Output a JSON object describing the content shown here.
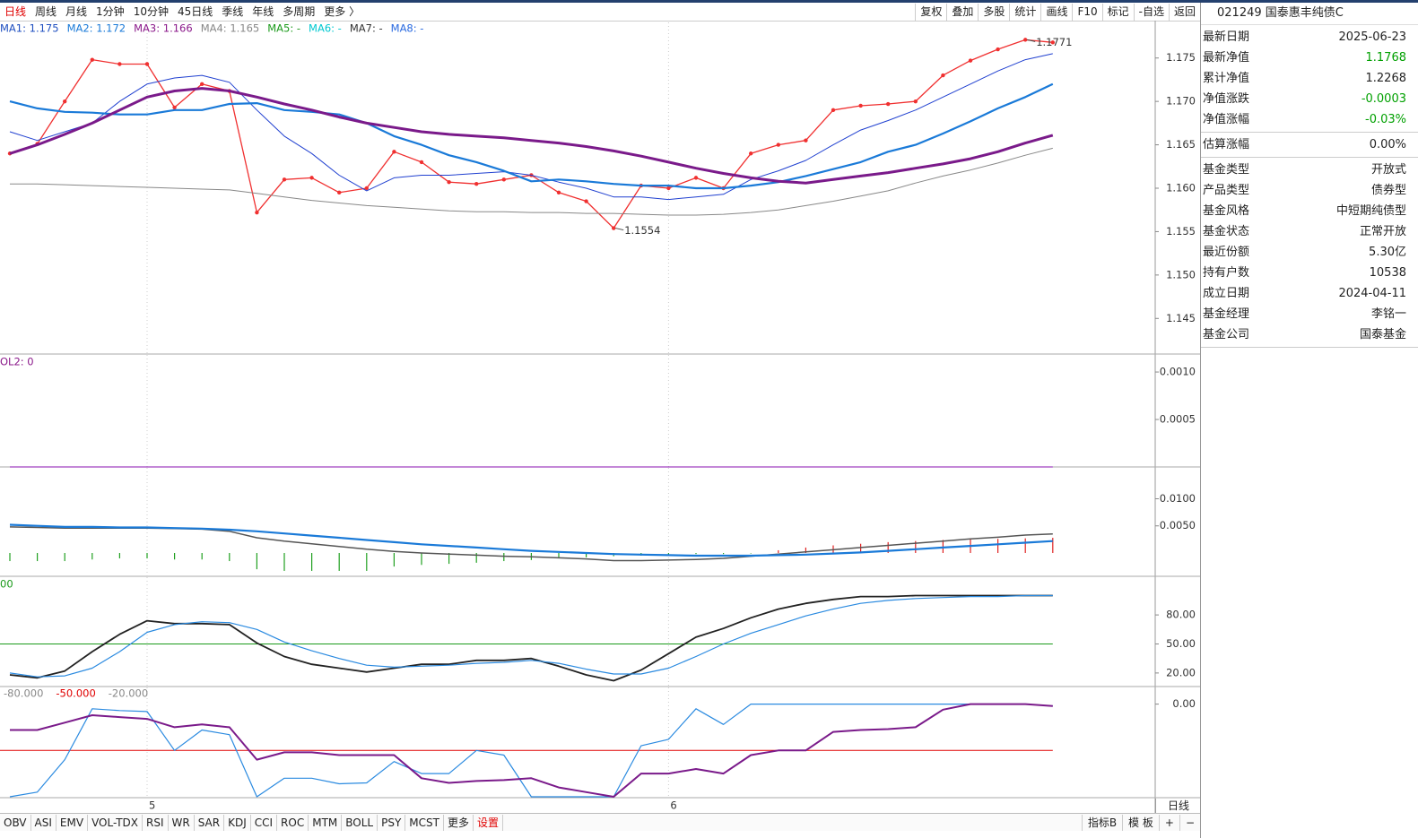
{
  "toolbar": {
    "tabs": [
      {
        "label": "日线",
        "active": true
      },
      {
        "label": "周线"
      },
      {
        "label": "月线"
      },
      {
        "label": "1分钟"
      },
      {
        "label": "10分钟"
      },
      {
        "label": "45日线"
      },
      {
        "label": "季线"
      },
      {
        "label": "年线"
      },
      {
        "label": "多周期"
      },
      {
        "label": "更多 〉"
      }
    ],
    "tools": [
      "复权",
      "叠加",
      "多股",
      "统计",
      "画线",
      "F10",
      "标记",
      "-自选",
      "返回"
    ]
  },
  "chart_data": [
    {
      "type": "line",
      "categories": [
        null,
        null,
        null,
        null,
        null,
        "5",
        null,
        null,
        null,
        null,
        null,
        null,
        null,
        null,
        null,
        null,
        null,
        null,
        null,
        null,
        null,
        null,
        null,
        null,
        "6",
        null,
        null,
        null,
        null,
        null,
        null,
        null,
        null,
        null,
        null,
        null,
        null,
        null,
        null
      ],
      "legend": [
        {
          "text": "MA1: 1.175",
          "color": "#1f4fc0"
        },
        {
          "text": "MA2: 1.172",
          "color": "#1a7ad8"
        },
        {
          "text": "MA3: 1.166",
          "color": "#8b1a8b"
        },
        {
          "text": "MA4: 1.165",
          "color": "#888888"
        },
        {
          "text": "MA5: -",
          "color": "#1a9a1a"
        },
        {
          "text": "MA6: -",
          "color": "#00c8d0"
        },
        {
          "text": "MA7: -",
          "color": "#333333"
        },
        {
          "text": "MA8: -",
          "color": "#2a6ae0"
        }
      ],
      "ylim": [
        1.1409,
        1.1791
      ],
      "yticks": [
        1.175,
        {
          "value": 1.17,
          "label": "1.170"
        },
        1.165,
        {
          "value": 1.16,
          "label": "1.160"
        },
        1.155,
        {
          "value": 1.15,
          "label": "1.150"
        },
        1.145
      ],
      "series": [
        {
          "color": "#f03030",
          "markers": true,
          "values": [
            1.164,
            1.1651,
            1.17,
            1.1748,
            1.1743,
            1.1743,
            1.1693,
            1.172,
            1.1712,
            1.1572,
            1.161,
            1.1612,
            1.1595,
            1.16,
            1.1642,
            1.163,
            1.1607,
            1.1605,
            1.161,
            1.1615,
            1.1595,
            1.1585,
            1.1554,
            1.1603,
            1.16,
            1.1612,
            1.16,
            1.164,
            1.165,
            1.1655,
            1.169,
            1.1695,
            1.1697,
            1.17,
            1.173,
            1.1747,
            1.176,
            1.1771,
            1.1768
          ]
        },
        {
          "color": "#2040d0",
          "values": [
            1.1665,
            1.1655,
            1.1665,
            1.1675,
            1.17,
            1.172,
            1.1727,
            1.173,
            1.1722,
            1.169,
            1.166,
            1.164,
            1.1615,
            1.1597,
            1.1612,
            1.1615,
            1.1615,
            1.1617,
            1.1619,
            1.1615,
            1.1607,
            1.16,
            1.159,
            1.159,
            1.1587,
            1.159,
            1.1593,
            1.161,
            1.162,
            1.1632,
            1.165,
            1.1667,
            1.1678,
            1.169,
            1.1705,
            1.172,
            1.1735,
            1.1748,
            1.1755
          ]
        },
        {
          "color": "#1a7ad8",
          "values": [
            1.17,
            1.1692,
            1.1688,
            1.1687,
            1.1685,
            1.1685,
            1.169,
            1.169,
            1.1697,
            1.1698,
            1.169,
            1.1688,
            1.1685,
            1.1675,
            1.166,
            1.165,
            1.1638,
            1.163,
            1.162,
            1.1608,
            1.161,
            1.1608,
            1.1605,
            1.1603,
            1.1603,
            1.16,
            1.16,
            1.1603,
            1.1607,
            1.1614,
            1.1622,
            1.163,
            1.1642,
            1.165,
            1.1663,
            1.1677,
            1.1692,
            1.1705,
            1.172
          ]
        },
        {
          "color": "#7a1a8a",
          "values": [
            1.164,
            1.165,
            1.1662,
            1.1675,
            1.169,
            1.1705,
            1.1712,
            1.1715,
            1.1712,
            1.1705,
            1.1697,
            1.169,
            1.1682,
            1.1675,
            1.167,
            1.1665,
            1.1662,
            1.166,
            1.1658,
            1.1655,
            1.1652,
            1.1648,
            1.1643,
            1.1637,
            1.163,
            1.1623,
            1.1617,
            1.1612,
            1.1608,
            1.1606,
            1.161,
            1.1614,
            1.1618,
            1.1623,
            1.1628,
            1.1634,
            1.1642,
            1.1652,
            1.1661
          ]
        },
        {
          "color": "#888888",
          "values": [
            1.1605,
            1.1605,
            1.1604,
            1.1603,
            1.1602,
            1.1601,
            1.16,
            1.1599,
            1.1598,
            1.1594,
            1.159,
            1.1586,
            1.1583,
            1.158,
            1.1578,
            1.1576,
            1.1574,
            1.1573,
            1.1573,
            1.1572,
            1.1572,
            1.1571,
            1.1571,
            1.157,
            1.1569,
            1.1569,
            1.157,
            1.1572,
            1.1575,
            1.158,
            1.1585,
            1.1591,
            1.1597,
            1.1606,
            1.1614,
            1.1621,
            1.1629,
            1.1638,
            1.1646
          ]
        }
      ],
      "annotations": [
        {
          "value": 1.1771
        },
        {
          "value": 1.1554
        }
      ]
    },
    {
      "type": "line",
      "header": "OL2: 0",
      "header_color": "#8b1a8b",
      "ylim": [
        0,
        0.00118
      ],
      "yticks": [
        {
          "value": 0.001,
          "label": "0.0010"
        },
        0.0005
      ],
      "series": [
        {
          "color": "#a040c0",
          "values": [
            0,
            0,
            0,
            0,
            0,
            0,
            0,
            0,
            0,
            0,
            0,
            0,
            0,
            0,
            0,
            0,
            0,
            0,
            0,
            0,
            0,
            0,
            0,
            0,
            0,
            0,
            0,
            0,
            0,
            0,
            0,
            0,
            0,
            0,
            0,
            0,
            0,
            0,
            0
          ]
        }
      ]
    },
    {
      "type": "line",
      "ylim": [
        -0.0043,
        0.0157
      ],
      "yticks": [
        {
          "value": 0.01,
          "label": "0.0100"
        },
        {
          "value": 0.005,
          "label": "0.0050"
        }
      ],
      "series": [
        {
          "color": "#555555",
          "values": [
            0.0048,
            0.0047,
            0.0046,
            0.0046,
            0.0046,
            0.0046,
            0.0045,
            0.0044,
            0.004,
            0.0028,
            0.0022,
            0.0017,
            0.0012,
            0.0007,
            0.0003,
            0,
            -0.0002,
            -0.0004,
            -0.0006,
            -0.0007,
            -0.0009,
            -0.0011,
            -0.0014,
            -0.0014,
            -0.0013,
            -0.0012,
            -0.001,
            -0.0006,
            -0.0002,
            0.0002,
            0.0006,
            0.001,
            0.0014,
            0.0018,
            0.0022,
            0.0026,
            0.0029,
            0.0033,
            0.0035
          ]
        },
        {
          "color": "#1a7ad8",
          "values": [
            0.0052,
            0.005,
            0.0048,
            0.0048,
            0.0047,
            0.0047,
            0.0046,
            0.0045,
            0.0043,
            0.004,
            0.0036,
            0.0032,
            0.0028,
            0.0024,
            0.002,
            0.0016,
            0.0013,
            0.001,
            0.0007,
            0.0004,
            0.0002,
            0,
            -0.0002,
            -0.0003,
            -0.0004,
            -0.0005,
            -0.0005,
            -0.0005,
            -0.0004,
            -0.0003,
            -0.0001,
            0.0001,
            0.0004,
            0.0007,
            0.001,
            0.0013,
            0.0016,
            0.0019,
            0.0022
          ]
        }
      ],
      "bars": {
        "up_color": "#e02020",
        "down_color": "#20a020",
        "values": [
          -0.0015,
          -0.0015,
          -0.0015,
          -0.0012,
          -0.001,
          -0.001,
          -0.0012,
          -0.0012,
          -0.0015,
          -0.003,
          -0.0033,
          -0.0033,
          -0.0033,
          -0.0033,
          -0.0025,
          -0.0022,
          -0.002,
          -0.0018,
          -0.0015,
          -0.0013,
          -0.001,
          -0.0008,
          -0.0006,
          -0.0005,
          -0.0003,
          -0.0002,
          -0.0002,
          -0.0001,
          0.0005,
          0.001,
          0.0014,
          0.0017,
          0.002,
          0.0022,
          0.0024,
          0.0025,
          0.0026,
          0.0027,
          0.0028
        ]
      }
    },
    {
      "type": "line",
      "header": "00",
      "header_color": "#1a9a1a",
      "ylim": [
        6,
        119
      ],
      "yticks": [
        {
          "value": 80,
          "label": "80.00"
        },
        {
          "value": 50,
          "label": "50.00"
        },
        {
          "value": 20,
          "label": "20.00"
        }
      ],
      "levels": [
        {
          "value": 50,
          "color": "#1a9a1a",
          "line": true
        }
      ],
      "series": [
        {
          "color": "#222222",
          "values": [
            18,
            15,
            22,
            42,
            60,
            74,
            71,
            71,
            70,
            51,
            37,
            29,
            25,
            21,
            25,
            29,
            29,
            33,
            33,
            35,
            27,
            18,
            12,
            23,
            40,
            57,
            66,
            77,
            86,
            92,
            96,
            99,
            99,
            100,
            100,
            100,
            100,
            100,
            100
          ]
        },
        {
          "color": "#2a8ae0",
          "values": [
            20,
            16,
            17,
            25,
            42,
            62,
            70,
            73,
            72,
            65,
            52,
            43,
            35,
            28,
            26,
            27,
            28,
            30,
            31,
            33,
            30,
            24,
            19,
            19,
            25,
            37,
            50,
            61,
            70,
            79,
            86,
            92,
            95,
            97,
            98,
            99,
            99,
            100,
            100
          ]
        }
      ]
    },
    {
      "type": "line",
      "ylim": [
        -101,
        18
      ],
      "yticks": [
        {
          "value": 0,
          "label": "0.00"
        }
      ],
      "levels": [
        {
          "value": -80,
          "label": "-80.000",
          "color": "#888888"
        },
        {
          "value": -50,
          "label": "-50.000",
          "color": "#e00000",
          "line": true
        },
        {
          "value": -20,
          "label": "-20.000",
          "color": "#888888"
        }
      ],
      "series": [
        {
          "color": "#2a8ae0",
          "values": [
            -100,
            -95,
            -60,
            -5,
            -7,
            -8,
            -50,
            -28,
            -33,
            -100,
            -80,
            -80,
            -86,
            -85,
            -62,
            -75,
            -75,
            -50,
            -55,
            -100,
            -100,
            -100,
            -100,
            -45,
            -38,
            -5,
            -22,
            0,
            0,
            0,
            0,
            0,
            0,
            0,
            0,
            0,
            0,
            0,
            -2
          ]
        },
        {
          "color": "#7a1a8a",
          "values": [
            -28,
            -28,
            -20,
            -12,
            -14,
            -16,
            -25,
            -22,
            -25,
            -60,
            -52,
            -52,
            -55,
            -55,
            -55,
            -80,
            -85,
            -83,
            -82,
            -80,
            -90,
            -95,
            -100,
            -75,
            -75,
            -70,
            -75,
            -55,
            -50,
            -50,
            -30,
            -28,
            -27,
            -25,
            -6,
            0,
            0,
            0,
            -2
          ]
        }
      ]
    }
  ],
  "period_label": "日线",
  "indicator_tabs": [
    {
      "label": "OBV"
    },
    {
      "label": "ASI"
    },
    {
      "label": "EMV"
    },
    {
      "label": "VOL-TDX"
    },
    {
      "label": "RSI"
    },
    {
      "label": "WR"
    },
    {
      "label": "SAR"
    },
    {
      "label": "KDJ"
    },
    {
      "label": "CCI"
    },
    {
      "label": "ROC"
    },
    {
      "label": "MTM"
    },
    {
      "label": "BOLL"
    },
    {
      "label": "PSY"
    },
    {
      "label": "MCST"
    },
    {
      "label": "更多"
    },
    {
      "label": "设置",
      "highlight": true
    }
  ],
  "indicator_tools": [
    "指标B",
    "模 板",
    "+",
    "−"
  ],
  "fund_panel": {
    "title": "021249 国泰惠丰纯债C",
    "groups": [
      [
        {
          "label": "最新日期",
          "value": "2025-06-23"
        },
        {
          "label": "最新净值",
          "value": "1.1768",
          "color": "#00a000"
        },
        {
          "label": "累计净值",
          "value": "1.2268"
        },
        {
          "label": "净值涨跌",
          "value": "-0.0003",
          "color": "#00a000"
        },
        {
          "label": "净值涨幅",
          "value": "-0.03%",
          "color": "#00a000"
        }
      ],
      [
        {
          "label": "估算涨幅",
          "value": "0.00%"
        }
      ],
      [
        {
          "label": "基金类型",
          "value": "开放式"
        },
        {
          "label": "产品类型",
          "value": "债券型"
        },
        {
          "label": "基金风格",
          "value": "中短期纯债型"
        },
        {
          "label": "基金状态",
          "value": "正常开放"
        },
        {
          "label": "最近份额",
          "value": "5.30亿"
        },
        {
          "label": "持有户数",
          "value": "10538"
        },
        {
          "label": "成立日期",
          "value": "2024-04-11"
        },
        {
          "label": "基金经理",
          "value": "李铭一"
        },
        {
          "label": "基金公司",
          "value": "国泰基金"
        }
      ]
    ]
  }
}
